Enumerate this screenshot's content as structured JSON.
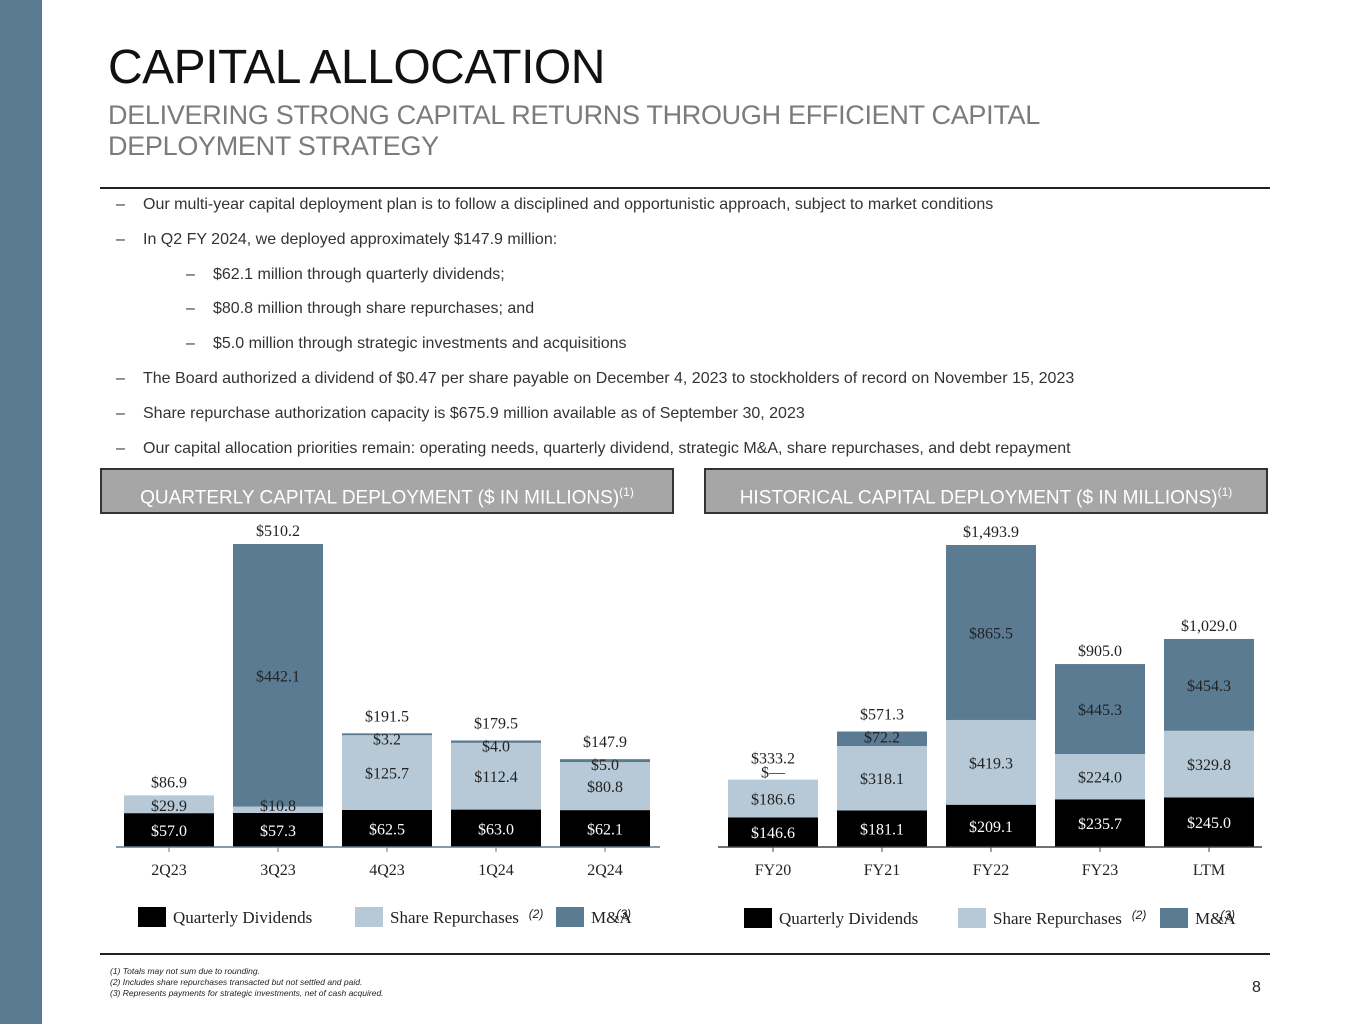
{
  "header": {
    "title": "CAPITAL ALLOCATION",
    "subtitle": "DELIVERING STRONG CAPITAL RETURNS THROUGH EFFICIENT CAPITAL DEPLOYMENT STRATEGY"
  },
  "bullets": [
    {
      "text": "Our multi-year capital deployment plan is to follow a disciplined and opportunistic approach, subject to market conditions",
      "level": 1
    },
    {
      "text": "In Q2 FY 2024, we deployed approximately $147.9 million:",
      "level": 1
    },
    {
      "text": "$62.1 million through quarterly dividends;",
      "level": 2
    },
    {
      "text": "$80.8 million through share repurchases; and",
      "level": 2
    },
    {
      "text": "$5.0 million through strategic investments and acquisitions",
      "level": 2
    },
    {
      "text": "The Board authorized a dividend of $0.47 per share payable on December 4, 2023 to stockholders of record on November 15, 2023",
      "level": 1
    },
    {
      "text": "Share repurchase authorization capacity is $675.9 million available as of September 30, 2023",
      "level": 1
    },
    {
      "text": "Our capital allocation priorities remain: operating needs, quarterly dividend, strategic M&A, share repurchases, and debt repayment",
      "level": 1
    }
  ],
  "bullet_dash": "–",
  "colors": {
    "dividends": "#000000",
    "repurchases": "#b7c9d6",
    "ma": "#5a7b92",
    "sidebar": "#5a7b92",
    "header_box": "#a6a6a6"
  },
  "chart_data": [
    {
      "type": "bar",
      "stacked": true,
      "title": "QUARTERLY CAPITAL DEPLOYMENT ($ IN MILLIONS)",
      "title_sup": "(1)",
      "categories": [
        "2Q23",
        "3Q23",
        "4Q23",
        "1Q24",
        "2Q24"
      ],
      "series": [
        {
          "name": "Quarterly Dividends",
          "values": [
            57.0,
            57.3,
            62.5,
            63.0,
            62.1
          ],
          "labels": [
            "$57.0",
            "$57.3",
            "$62.5",
            "$63.0",
            "$62.1"
          ]
        },
        {
          "name": "Share Repurchases",
          "sup": "(2)",
          "values": [
            29.9,
            10.8,
            125.7,
            112.4,
            80.8
          ],
          "labels": [
            "$29.9",
            "$10.8",
            "$125.7",
            "$112.4",
            "$80.8"
          ]
        },
        {
          "name": "M&A",
          "sup": "(3)",
          "values": [
            0,
            442.1,
            3.2,
            4.0,
            5.0
          ],
          "labels": [
            "",
            "$442.1",
            "$3.2",
            "$4.0",
            "$5.0"
          ]
        }
      ],
      "totals": [
        86.9,
        510.2,
        191.5,
        179.5,
        147.9
      ],
      "total_labels": [
        "$86.9",
        "$510.2",
        "$191.5",
        "$179.5",
        "$147.9"
      ],
      "ylim": [
        0,
        510.2
      ]
    },
    {
      "type": "bar",
      "stacked": true,
      "title": "HISTORICAL CAPITAL DEPLOYMENT ($ IN MILLIONS)",
      "title_sup": "(1)",
      "categories": [
        "FY20",
        "FY21",
        "FY22",
        "FY23",
        "LTM"
      ],
      "series": [
        {
          "name": "Quarterly Dividends",
          "values": [
            146.6,
            181.1,
            209.1,
            235.7,
            245.0
          ],
          "labels": [
            "$146.6",
            "$181.1",
            "$209.1",
            "$235.7",
            "$245.0"
          ]
        },
        {
          "name": "Share Repurchases",
          "sup": "(2)",
          "values": [
            186.6,
            318.1,
            419.3,
            224.0,
            329.8
          ],
          "labels": [
            "$186.6",
            "$318.1",
            "$419.3",
            "$224.0",
            "$329.8"
          ]
        },
        {
          "name": "M&A",
          "sup": "(3)",
          "values": [
            0,
            72.2,
            865.5,
            445.3,
            454.3
          ],
          "labels": [
            "$—",
            "$72.2",
            "$865.5",
            "$445.3",
            "$454.3"
          ]
        }
      ],
      "totals": [
        333.2,
        571.3,
        1493.9,
        905.0,
        1029.0
      ],
      "total_labels": [
        "$333.2",
        "$571.3",
        "$1,493.9",
        "$905.0",
        "$1,029.0"
      ],
      "ylim": [
        0,
        1493.9
      ]
    }
  ],
  "footnotes": [
    "(1) Totals may not sum due to rounding.",
    "(2) Includes share repurchases transacted but not settled and paid.",
    "(3) Represents payments for strategic investments, net of cash acquired."
  ],
  "page_number": "8"
}
